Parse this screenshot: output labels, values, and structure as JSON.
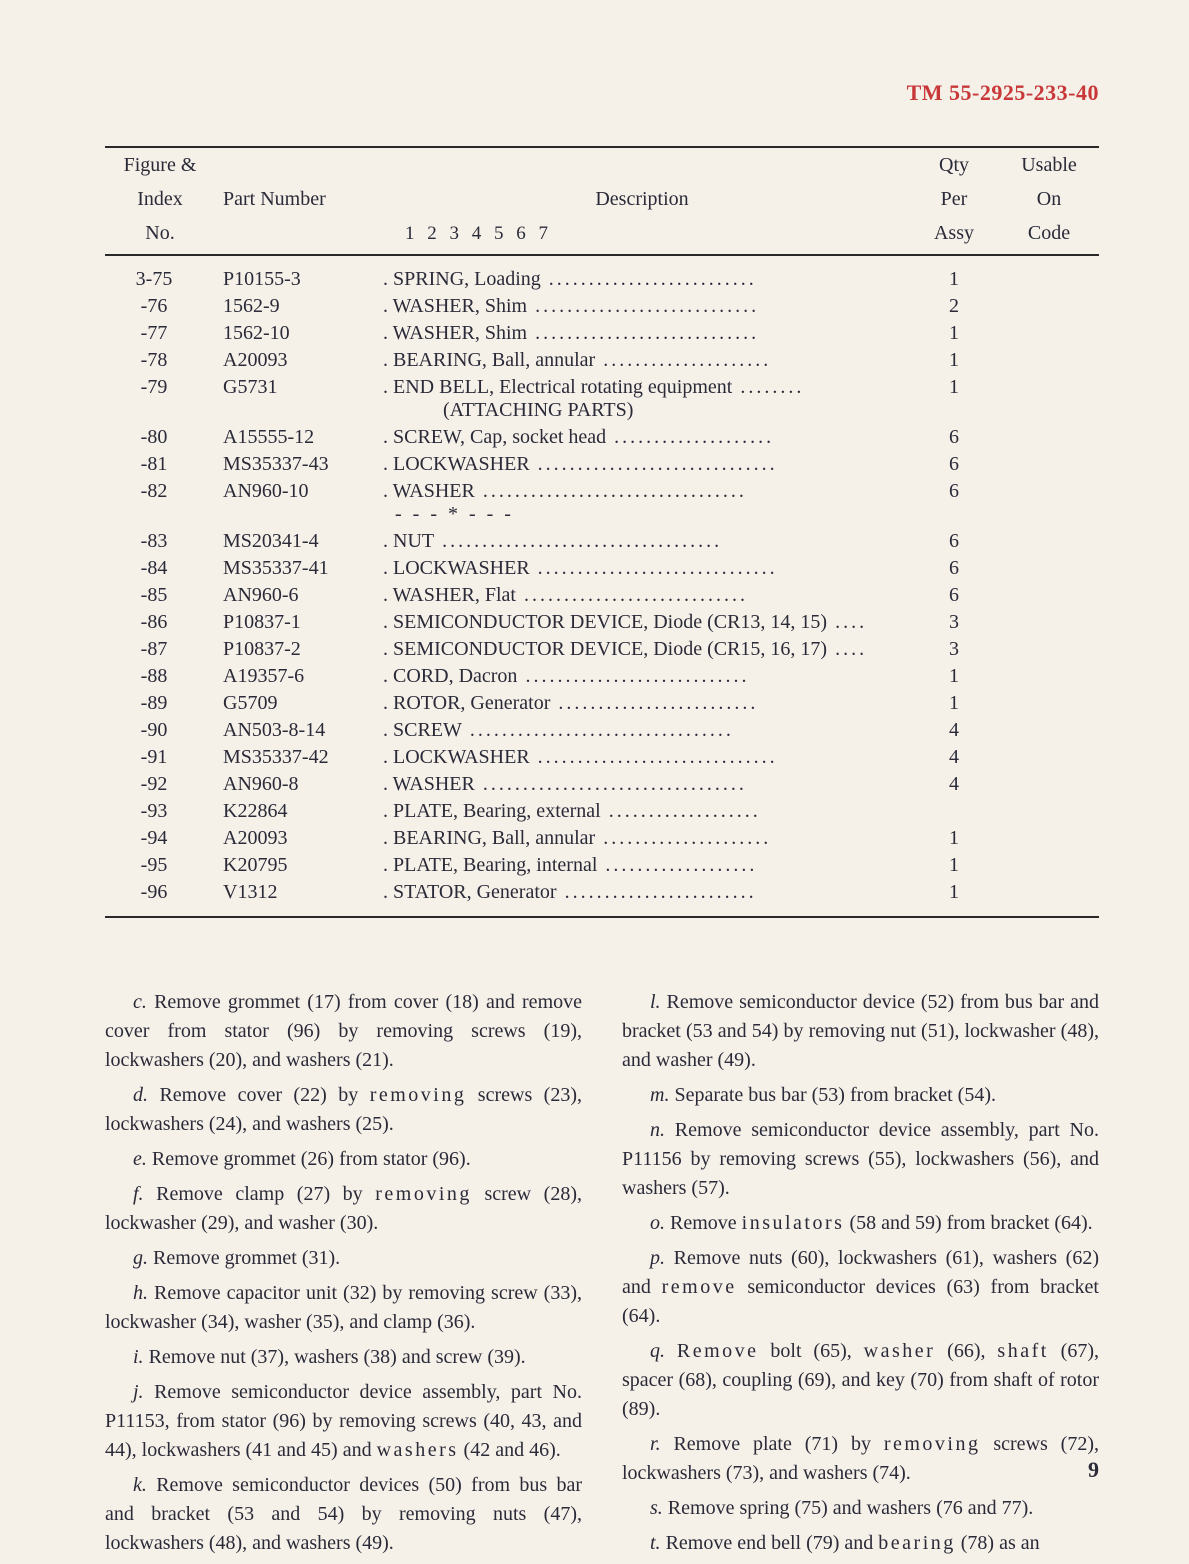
{
  "document": {
    "header": "TM 55-2925-233-40",
    "page_number": "9",
    "background_color": "#f5f0e8",
    "text_color": "#2a2a38",
    "header_color": "#c83838"
  },
  "table": {
    "headers": {
      "col1_line1": "Figure &",
      "col1_line2": "Index",
      "col1_line3": "No.",
      "col2": "Part Number",
      "col3_line1": "Description",
      "col3_line2": "1 2 3 4 5 6 7",
      "col4_line1": "Qty",
      "col4_line2": "Per",
      "col4_line3": "Assy",
      "col5_line1": "Usable",
      "col5_line2": "On",
      "col5_line3": "Code"
    },
    "rows": [
      {
        "index": "3-75",
        "part": "P10155-3",
        "desc": ". SPRING, Loading",
        "qty": "1"
      },
      {
        "index": "-76",
        "part": "1562-9",
        "desc": ". WASHER, Shim",
        "qty": "2"
      },
      {
        "index": "-77",
        "part": "1562-10",
        "desc": ". WASHER, Shim",
        "qty": "1"
      },
      {
        "index": "-78",
        "part": "A20093",
        "desc": ". BEARING, Ball, annular",
        "qty": "1"
      },
      {
        "index": "-79",
        "part": "G5731",
        "desc": ". END BELL, Electrical rotating equipment",
        "qty": "1",
        "attach": "(ATTACHING PARTS)"
      },
      {
        "index": "-80",
        "part": "A15555-12",
        "desc": ". SCREW, Cap, socket head",
        "qty": "6"
      },
      {
        "index": "-81",
        "part": "MS35337-43",
        "desc": ". LOCKWASHER",
        "qty": "6"
      },
      {
        "index": "-82",
        "part": "AN960-10",
        "desc": ". WASHER",
        "qty": "6",
        "separator": "- - - * - - -"
      },
      {
        "index": "-83",
        "part": "MS20341-4",
        "desc": ". NUT",
        "qty": "6"
      },
      {
        "index": "-84",
        "part": "MS35337-41",
        "desc": ". LOCKWASHER",
        "qty": "6"
      },
      {
        "index": "-85",
        "part": "AN960-6",
        "desc": ". WASHER, Flat",
        "qty": "6"
      },
      {
        "index": "-86",
        "part": "P10837-1",
        "desc": ". SEMICONDUCTOR DEVICE, Diode (CR13, 14, 15)",
        "dots_short": true,
        "qty": "3"
      },
      {
        "index": "-87",
        "part": "P10837-2",
        "desc": ". SEMICONDUCTOR DEVICE, Diode (CR15, 16, 17)",
        "dots_short": true,
        "qty": "3"
      },
      {
        "index": "-88",
        "part": "A19357-6",
        "desc": ". CORD, Dacron",
        "qty": "1"
      },
      {
        "index": "-89",
        "part": "G5709",
        "desc": ". ROTOR, Generator",
        "qty": "1"
      },
      {
        "index": "-90",
        "part": "AN503-8-14",
        "desc": ". SCREW",
        "qty": "4"
      },
      {
        "index": "-91",
        "part": "MS35337-42",
        "desc": ". LOCKWASHER",
        "qty": "4"
      },
      {
        "index": "-92",
        "part": "AN960-8",
        "desc": ". WASHER",
        "qty": "4"
      },
      {
        "index": "-93",
        "part": "K22864",
        "desc": ". PLATE, Bearing, external",
        "qty": ""
      },
      {
        "index": "-94",
        "part": "A20093",
        "desc": ". BEARING, Ball, annular",
        "qty": "1"
      },
      {
        "index": "-95",
        "part": "K20795",
        "desc": ". PLATE, Bearing, internal",
        "qty": "1"
      },
      {
        "index": "-96",
        "part": "V1312",
        "desc": ". STATOR, Generator",
        "qty": "1"
      }
    ]
  },
  "body": {
    "left_paras": [
      {
        "letter": "c.",
        "text": "Remove grommet (17) from cover (18) and remove cover from stator (96) by removing screws (19), lockwashers (20), and washers (21)."
      },
      {
        "letter": "d.",
        "text": "Remove cover (22) by",
        "spaced": "removing",
        "text2": "screws (23), lockwashers (24), and washers (25)."
      },
      {
        "letter": "e.",
        "text": "Remove grommet (26) from stator (96)."
      },
      {
        "letter": "f.",
        "text": "Remove clamp (27) by",
        "spaced": "removing",
        "text2": "screw (28), lockwasher (29), and washer (30)."
      },
      {
        "letter": "g.",
        "text": "Remove grommet (31)."
      },
      {
        "letter": "h.",
        "text": "Remove capacitor unit (32) by removing screw (33), lockwasher (34), washer (35), and clamp (36)."
      },
      {
        "letter": "i.",
        "text": "Remove nut (37), washers (38) and screw (39)."
      },
      {
        "letter": "j.",
        "text": "Remove semiconductor device assembly, part No. P11153, from stator (96) by removing screws (40, 43, and 44), lockwashers (41 and 45) and",
        "spaced": "washers",
        "text2": "(42 and 46)."
      },
      {
        "letter": "k.",
        "text": "Remove semiconductor devices (50) from bus bar and bracket (53 and 54) by removing nuts (47), lockwashers (48), and washers (49)."
      }
    ],
    "right_paras": [
      {
        "letter": "l.",
        "text": "Remove semiconductor device (52) from bus bar and bracket (53 and 54) by removing nut (51), lockwasher (48), and washer (49)."
      },
      {
        "letter": "m.",
        "text": "Separate bus bar (53) from bracket (54)."
      },
      {
        "letter": "n.",
        "text": "Remove semiconductor device assembly, part No. P11156 by removing screws (55), lockwashers (56), and washers (57)."
      },
      {
        "letter": "o.",
        "text": "Remove",
        "spaced": "insulators",
        "text2": "(58 and 59) from bracket (64)."
      },
      {
        "letter": "p.",
        "text": "Remove nuts (60), lockwashers (61), washers (62) and",
        "spaced": "remove",
        "text2": "semiconductor devices (63) from bracket (64)."
      },
      {
        "letter": "q.",
        "spaced0": "Remove",
        "text": "bolt (65),",
        "spaced": "washer",
        "text2": "(66),",
        "spaced2": "shaft",
        "text3": "(67), spacer (68), coupling (69), and key (70) from shaft of rotor (89)."
      },
      {
        "letter": "r.",
        "text": "Remove plate (71) by",
        "spaced": "removing",
        "text2": "screws (72), lockwashers (73), and washers (74)."
      },
      {
        "letter": "s.",
        "text": "Remove spring (75) and washers (76 and 77)."
      },
      {
        "letter": "t.",
        "text": "Remove end bell (79) and",
        "spaced": "bearing",
        "text2": "(78) as an"
      }
    ]
  }
}
